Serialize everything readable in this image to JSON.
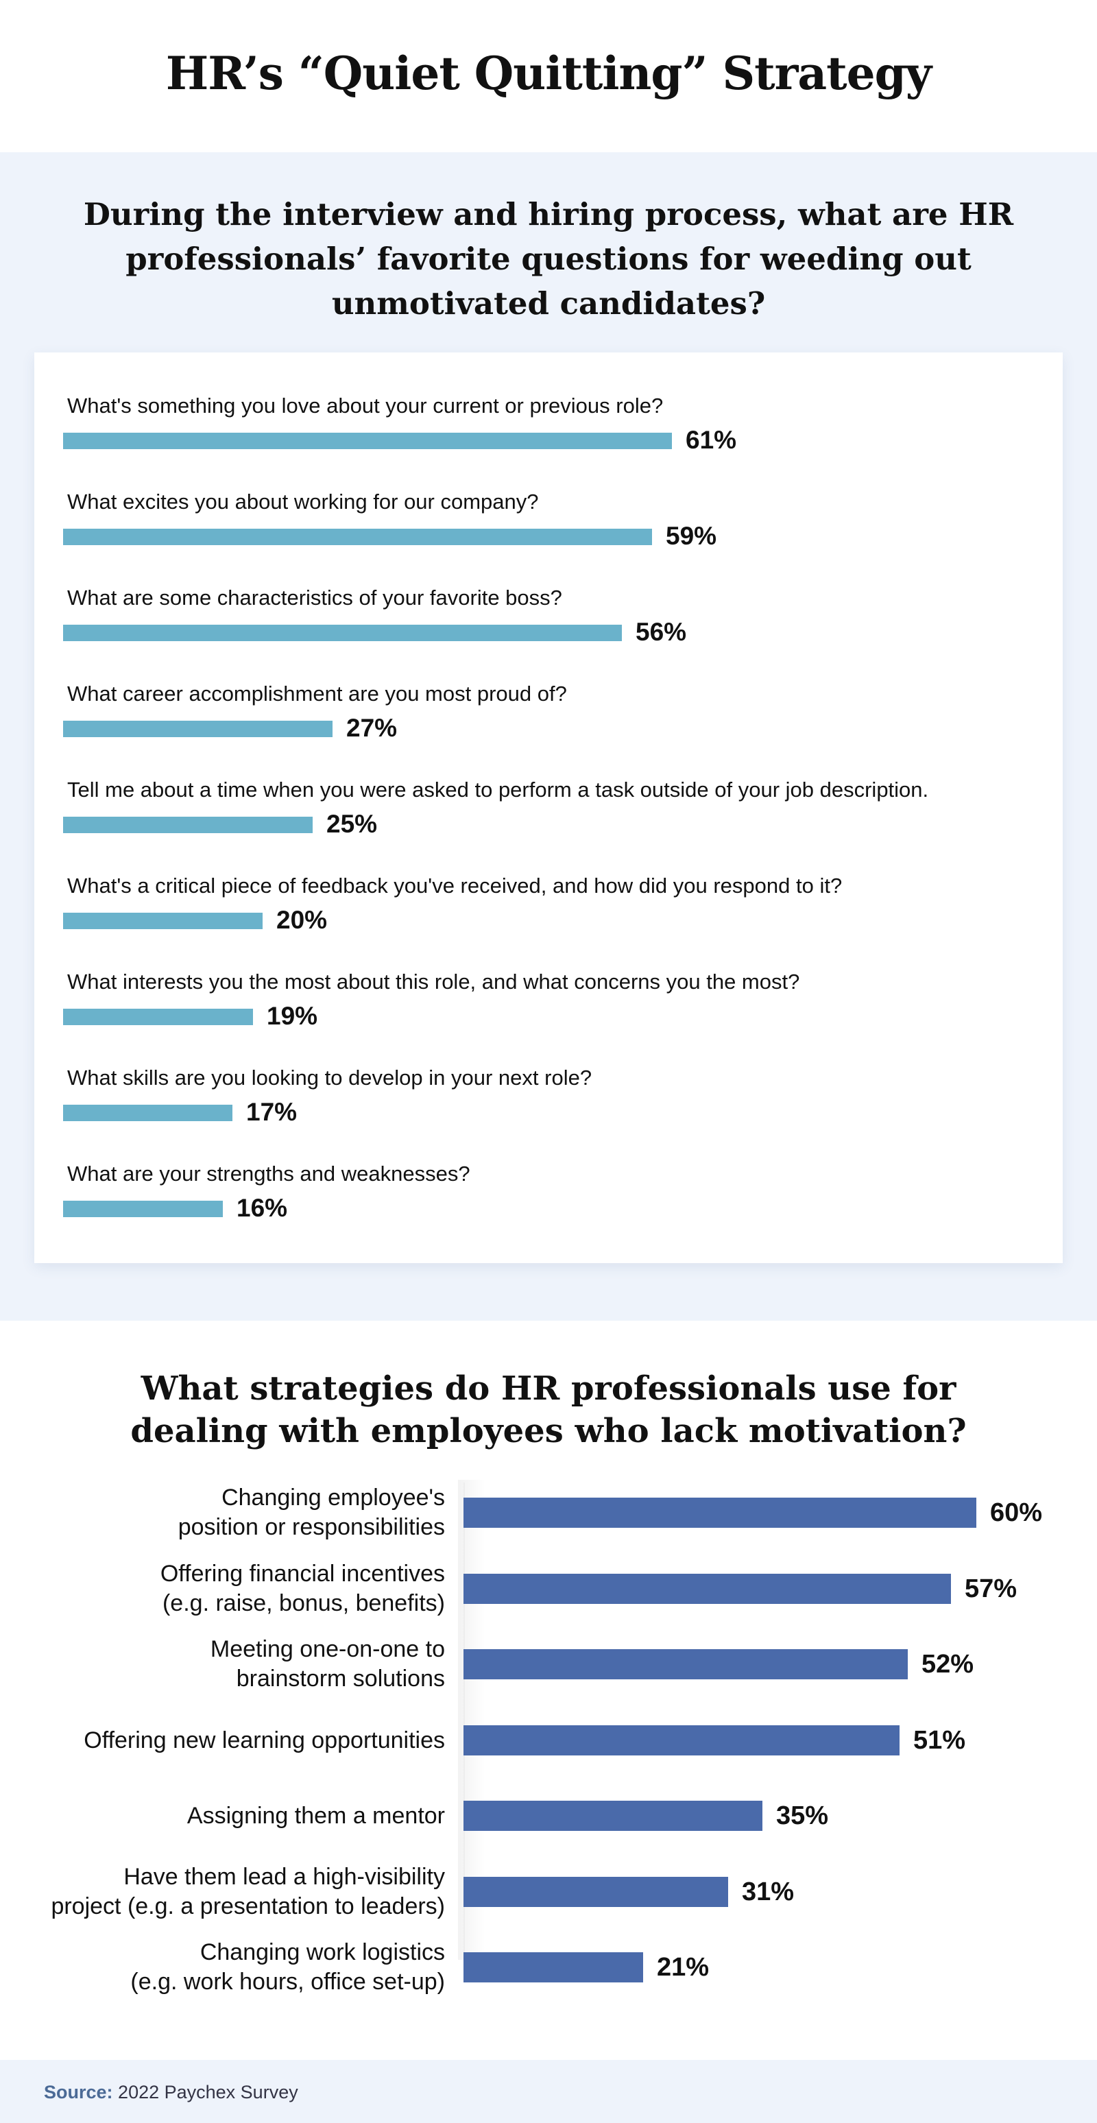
{
  "header": {
    "title": "HR’s “Quiet Quitting” Strategy"
  },
  "source": {
    "label": "Source:",
    "text": "2022 Paychex Survey"
  },
  "chart_data": [
    {
      "type": "bar",
      "title": "During the interview and hiring process, what are HR professionals’ favorite questions for weeding out unmotivated candidates?",
      "orientation": "horizontal",
      "color": "#6ab2cb",
      "categories": [
        "What's something you love about your current or previous role?",
        "What excites you about working for our company?",
        "What are some characteristics of your favorite boss?",
        "What career accomplishment are you most proud of?",
        "Tell me about a time when you were asked to perform a task outside of your job description.",
        "What's a critical piece of feedback you've received, and how did you respond to it?",
        "What interests you the most about this role, and what concerns you the most?",
        "What skills are you looking to develop in your next role?",
        "What are your strengths and weaknesses?"
      ],
      "values": [
        61,
        59,
        56,
        27,
        25,
        20,
        19,
        17,
        16
      ],
      "labels": [
        "61%",
        "59%",
        "56%",
        "27%",
        "25%",
        "20%",
        "19%",
        "17%",
        "16%"
      ]
    },
    {
      "type": "bar",
      "title": "What strategies do HR professionals use for dealing with employees who lack motivation?",
      "orientation": "horizontal",
      "color": "#4a6aaa",
      "categories": [
        [
          "Changing employee's",
          "position or responsibilities"
        ],
        [
          "Offering financial incentives",
          "(e.g. raise, bonus, benefits)"
        ],
        [
          "Meeting one-on-one to",
          "brainstorm solutions"
        ],
        [
          "Offering new learning opportunities"
        ],
        [
          "Assigning them a mentor"
        ],
        [
          "Have them lead a high-visibility",
          "project (e.g. a presentation to leaders)"
        ],
        [
          "Changing work logistics",
          "(e.g. work hours, office set-up)"
        ]
      ],
      "values": [
        60,
        57,
        52,
        51,
        35,
        31,
        21
      ],
      "labels": [
        "60%",
        "57%",
        "52%",
        "51%",
        "35%",
        "31%",
        "21%"
      ]
    }
  ]
}
